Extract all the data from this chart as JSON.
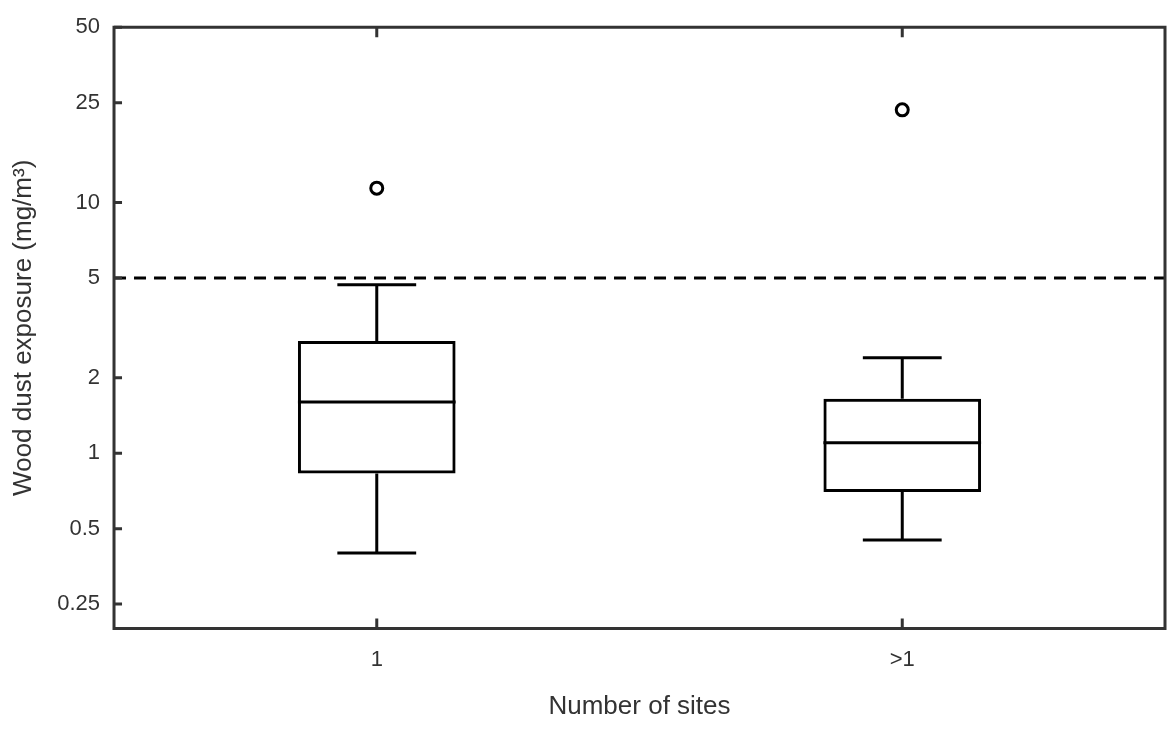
{
  "chart_data": {
    "type": "box",
    "xlabel": "Number of sites",
    "ylabel": "Wood dust exposure (mg/m³)",
    "categories": [
      "1",
      ">1"
    ],
    "log": "y",
    "ylim": [
      0.2,
      50
    ],
    "yticks": [
      0.25,
      0.5,
      1,
      2,
      5,
      10,
      25,
      50
    ],
    "grid": false,
    "legend": false,
    "series": [
      {
        "color": "#000000",
        "boxes": [
          {
            "low": 0.4,
            "q1": 0.83,
            "median": 1.6,
            "q3": 2.8,
            "high": 4.7,
            "outliers": [
              11.4
            ]
          },
          {
            "low": 0.45,
            "q1": 0.7,
            "median": 1.1,
            "q3": 1.65,
            "high": 2.4,
            "outliers": [
              23.4
            ]
          }
        ]
      }
    ],
    "ref_lines": [
      {
        "axis": "y",
        "value": 5,
        "line_style": "dashed",
        "color": "#000000"
      }
    ]
  }
}
